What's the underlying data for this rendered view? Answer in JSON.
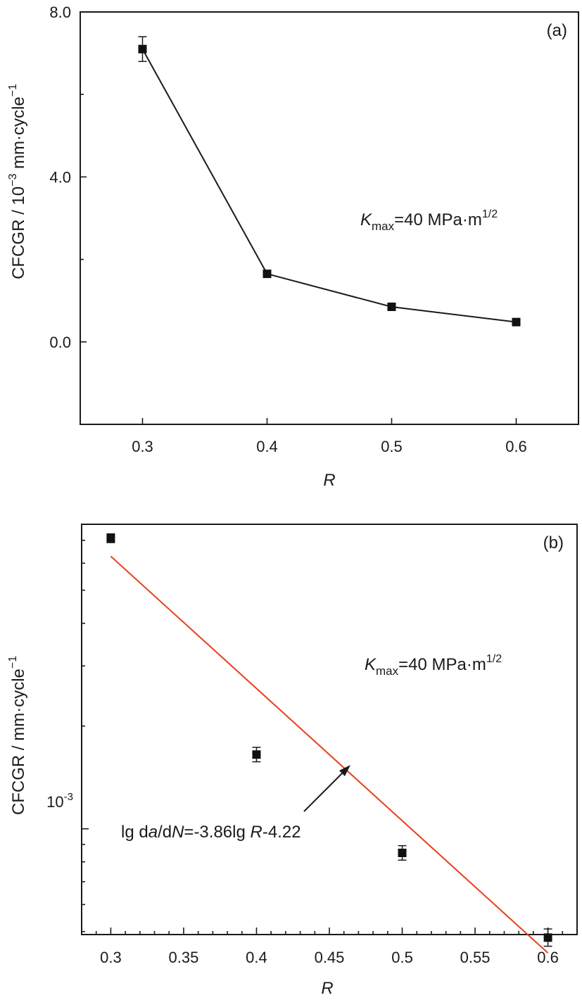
{
  "chart_data": [
    {
      "type": "line",
      "panel_label": "(a)",
      "xlabel": "R",
      "ylabel": {
        "main": "CFCGR / 10",
        "exp1": "−3",
        "mid": " mm·cycle",
        "exp2": "−1"
      },
      "annotation": {
        "k": "K",
        "sub": "max",
        "rest": "=40 MPa·m",
        "sup": "1/2"
      },
      "xlim": [
        0.25,
        0.65
      ],
      "ylim": [
        -2.0,
        8.0
      ],
      "xticks": [
        0.3,
        0.4,
        0.5,
        0.6
      ],
      "xtick_labels": [
        "0.3",
        "0.4",
        "0.5",
        "0.6"
      ],
      "yticks": [
        0.0,
        4.0,
        8.0
      ],
      "ytick_labels": [
        "0.0",
        "4.0",
        "8.0"
      ],
      "x": [
        0.3,
        0.4,
        0.5,
        0.6
      ],
      "y": [
        7.1,
        1.65,
        0.85,
        0.48
      ],
      "yerr": [
        0.3,
        0.08,
        0.07,
        0.07
      ]
    },
    {
      "type": "scatter",
      "panel_label": "(b)",
      "xlabel": "R",
      "ylabel": "CFCGR / mm·cycle",
      "ylabel_sup": "−1",
      "yscale": "log",
      "xlim": [
        0.28,
        0.62
      ],
      "xticks": [
        0.3,
        0.35,
        0.4,
        0.45,
        0.5,
        0.55,
        0.6
      ],
      "xtick_labels": [
        "0.3",
        "0.35",
        "0.4",
        "0.45",
        "0.5",
        "0.55",
        "0.6"
      ],
      "ylim": [
        0.00049,
        0.0078
      ],
      "ytick_label": {
        "base": "10",
        "exp": "-3"
      },
      "annotation": {
        "k": "K",
        "sub": "max",
        "rest": "=40 MPa·m",
        "sup": "1/2"
      },
      "x": [
        0.3,
        0.4,
        0.5,
        0.6
      ],
      "y": [
        0.0071,
        0.00165,
        0.00085,
        0.00048
      ],
      "yerr_factor": [
        1.03,
        1.05,
        1.05,
        1.06
      ],
      "fit": {
        "slope": -3.86,
        "intercept": -4.22,
        "x_range": [
          0.3,
          0.6
        ],
        "color": "#e8401c",
        "label": {
          "p1": "lg d",
          "a": "a",
          "p2": "/d",
          "n": "N",
          "p3": "=-3.86lg ",
          "r": "R",
          "p4": "-4.22"
        }
      }
    }
  ]
}
